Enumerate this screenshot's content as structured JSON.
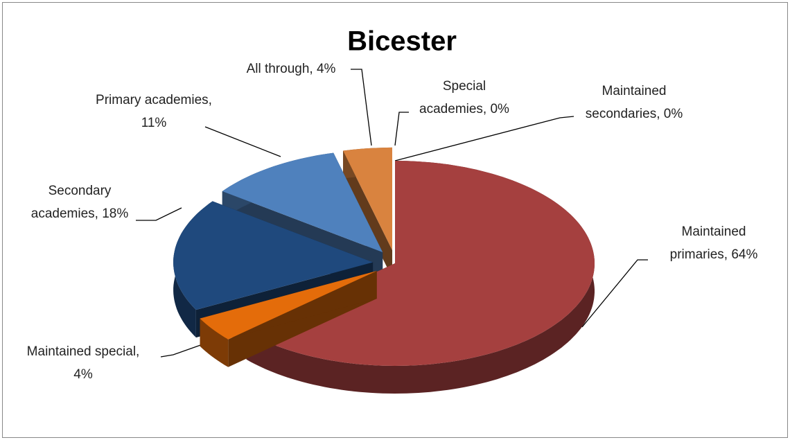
{
  "chart_data": {
    "type": "pie3d",
    "title": "Bicester",
    "values": [
      64,
      4,
      18,
      11,
      4,
      0,
      0
    ],
    "value_labels": [
      "Maintained primaries, 64%",
      "Maintained special, 4%",
      "Secondary academies, 18%",
      "Primary academies, 11%",
      "All through, 4%",
      "Special academies, 0%",
      "Maintained secondaries, 0%"
    ],
    "colors": [
      "#a5403f",
      "#e46c0a",
      "#1f497d",
      "#4f81bd",
      "#d9833f",
      "#8064a2",
      "#9bbb59"
    ]
  }
}
